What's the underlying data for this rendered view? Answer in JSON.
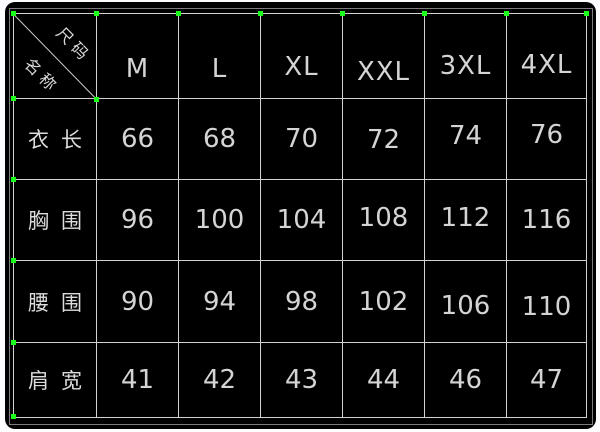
{
  "chart_data": {
    "type": "table",
    "corner": {
      "top_label": "尺码",
      "bottom_label": "名称"
    },
    "columns": [
      "M",
      "L",
      "XL",
      "XXL",
      "3XL",
      "4XL"
    ],
    "rows": [
      {
        "label": "衣长",
        "values": [
          66,
          68,
          70,
          72,
          74,
          76
        ]
      },
      {
        "label": "胸围",
        "values": [
          96,
          100,
          104,
          108,
          112,
          116
        ]
      },
      {
        "label": "腰围",
        "values": [
          90,
          94,
          98,
          102,
          106,
          110
        ]
      },
      {
        "label": "肩宽",
        "values": [
          41,
          42,
          43,
          44,
          46,
          47
        ]
      }
    ],
    "layout_hints": {
      "grid": "on",
      "style": "CAD drawing, white grid on black, green grip points on top and left intersections"
    }
  },
  "colors": {
    "page_background": "#fdfdff",
    "panel_background": "#000000",
    "grid_line": "#d2d2d2",
    "outer_frame": "#7d7d7d",
    "text": "#d6d6d6",
    "grip": "#1aff1a"
  }
}
